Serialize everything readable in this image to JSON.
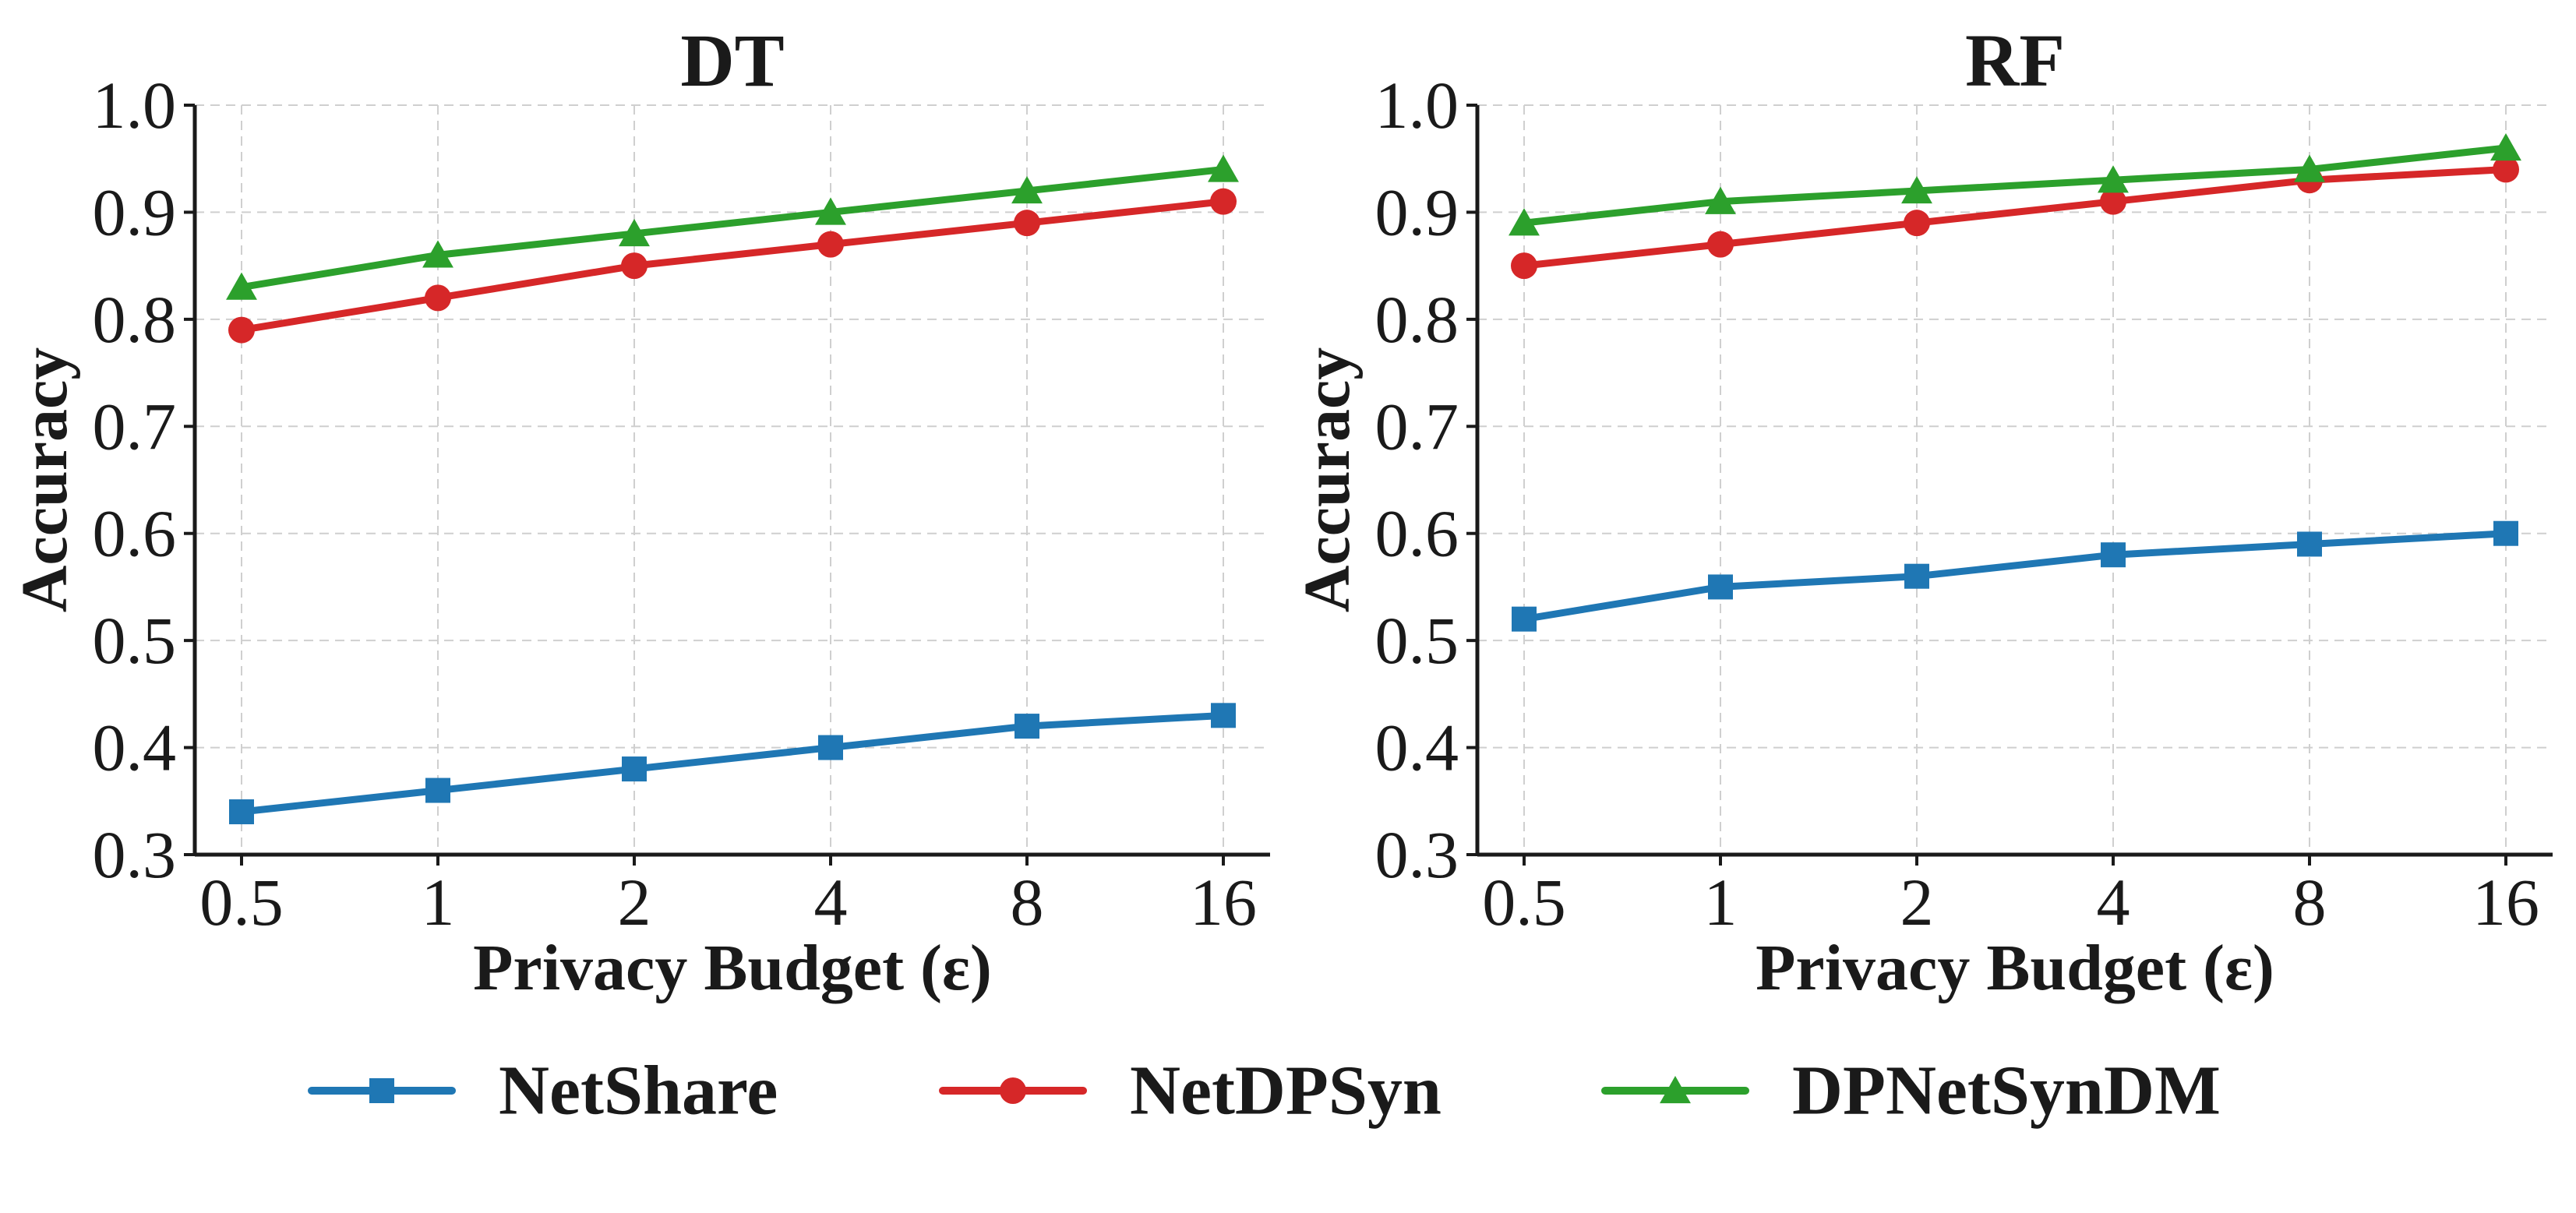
{
  "chart_data": [
    {
      "type": "line",
      "title": "DT",
      "xlabel": "Privacy Budget (ε)",
      "ylabel": "Accuracy",
      "categories": [
        "0.5",
        "1",
        "2",
        "4",
        "8",
        "16"
      ],
      "ylim": [
        0.3,
        1.0
      ],
      "yticks": [
        "0.3",
        "0.4",
        "0.5",
        "0.6",
        "0.7",
        "0.8",
        "0.9",
        "1.0"
      ],
      "grid": true,
      "series": [
        {
          "name": "NetShare",
          "color": "#1f77b4",
          "marker": "square",
          "values": [
            0.34,
            0.36,
            0.38,
            0.4,
            0.42,
            0.43
          ]
        },
        {
          "name": "NetDPSyn",
          "color": "#d62728",
          "marker": "circle",
          "values": [
            0.79,
            0.82,
            0.85,
            0.87,
            0.89,
            0.91
          ]
        },
        {
          "name": "DPNetSynDM",
          "color": "#2ca02c",
          "marker": "triangle",
          "values": [
            0.83,
            0.86,
            0.88,
            0.9,
            0.92,
            0.94
          ]
        }
      ]
    },
    {
      "type": "line",
      "title": "RF",
      "xlabel": "Privacy Budget (ε)",
      "ylabel": "Accuracy",
      "categories": [
        "0.5",
        "1",
        "2",
        "4",
        "8",
        "16"
      ],
      "ylim": [
        0.3,
        1.0
      ],
      "yticks": [
        "0.3",
        "0.4",
        "0.5",
        "0.6",
        "0.7",
        "0.8",
        "0.9",
        "1.0"
      ],
      "grid": true,
      "series": [
        {
          "name": "NetShare",
          "color": "#1f77b4",
          "marker": "square",
          "values": [
            0.52,
            0.55,
            0.56,
            0.58,
            0.59,
            0.6
          ]
        },
        {
          "name": "NetDPSyn",
          "color": "#d62728",
          "marker": "circle",
          "values": [
            0.85,
            0.87,
            0.89,
            0.91,
            0.93,
            0.94
          ]
        },
        {
          "name": "DPNetSynDM",
          "color": "#2ca02c",
          "marker": "triangle",
          "values": [
            0.89,
            0.91,
            0.92,
            0.93,
            0.94,
            0.96
          ]
        }
      ]
    }
  ],
  "legend": {
    "placement": "bottom-center",
    "items": [
      {
        "label": "NetShare",
        "color": "#1f77b4",
        "marker": "square"
      },
      {
        "label": "NetDPSyn",
        "color": "#d62728",
        "marker": "circle"
      },
      {
        "label": "DPNetSynDM",
        "color": "#2ca02c",
        "marker": "triangle"
      }
    ]
  }
}
